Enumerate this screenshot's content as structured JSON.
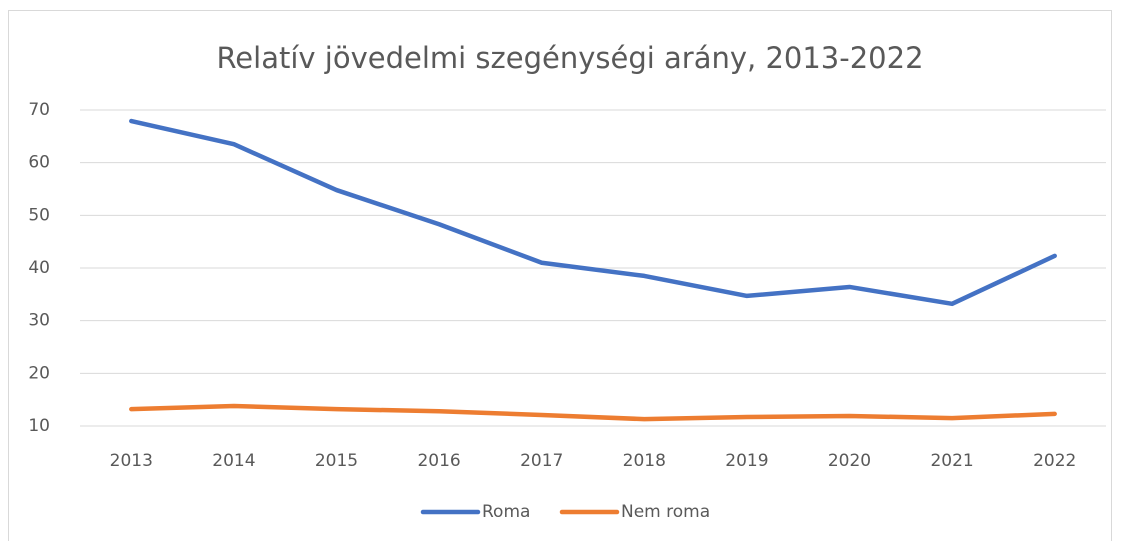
{
  "chart_data": {
    "type": "line",
    "title": "Relatív jövedelmi szegénységi arány, 2013-2022",
    "categories": [
      "2013",
      "2014",
      "2015",
      "2016",
      "2017",
      "2018",
      "2019",
      "2020",
      "2021",
      "2022"
    ],
    "series": [
      {
        "name": "Roma",
        "color": "#4472c4",
        "values": [
          67.9,
          63.5,
          54.8,
          48.3,
          41.0,
          38.5,
          34.7,
          36.4,
          33.2,
          42.3
        ]
      },
      {
        "name": "Nem roma",
        "color": "#ed7d31",
        "values": [
          13.2,
          13.8,
          13.2,
          12.8,
          12.1,
          11.3,
          11.7,
          11.9,
          11.5,
          12.3
        ]
      }
    ],
    "ylim": [
      10,
      70
    ],
    "yticks": [
      10,
      20,
      30,
      40,
      50,
      60,
      70
    ],
    "grid": true,
    "legend": "bottom"
  }
}
